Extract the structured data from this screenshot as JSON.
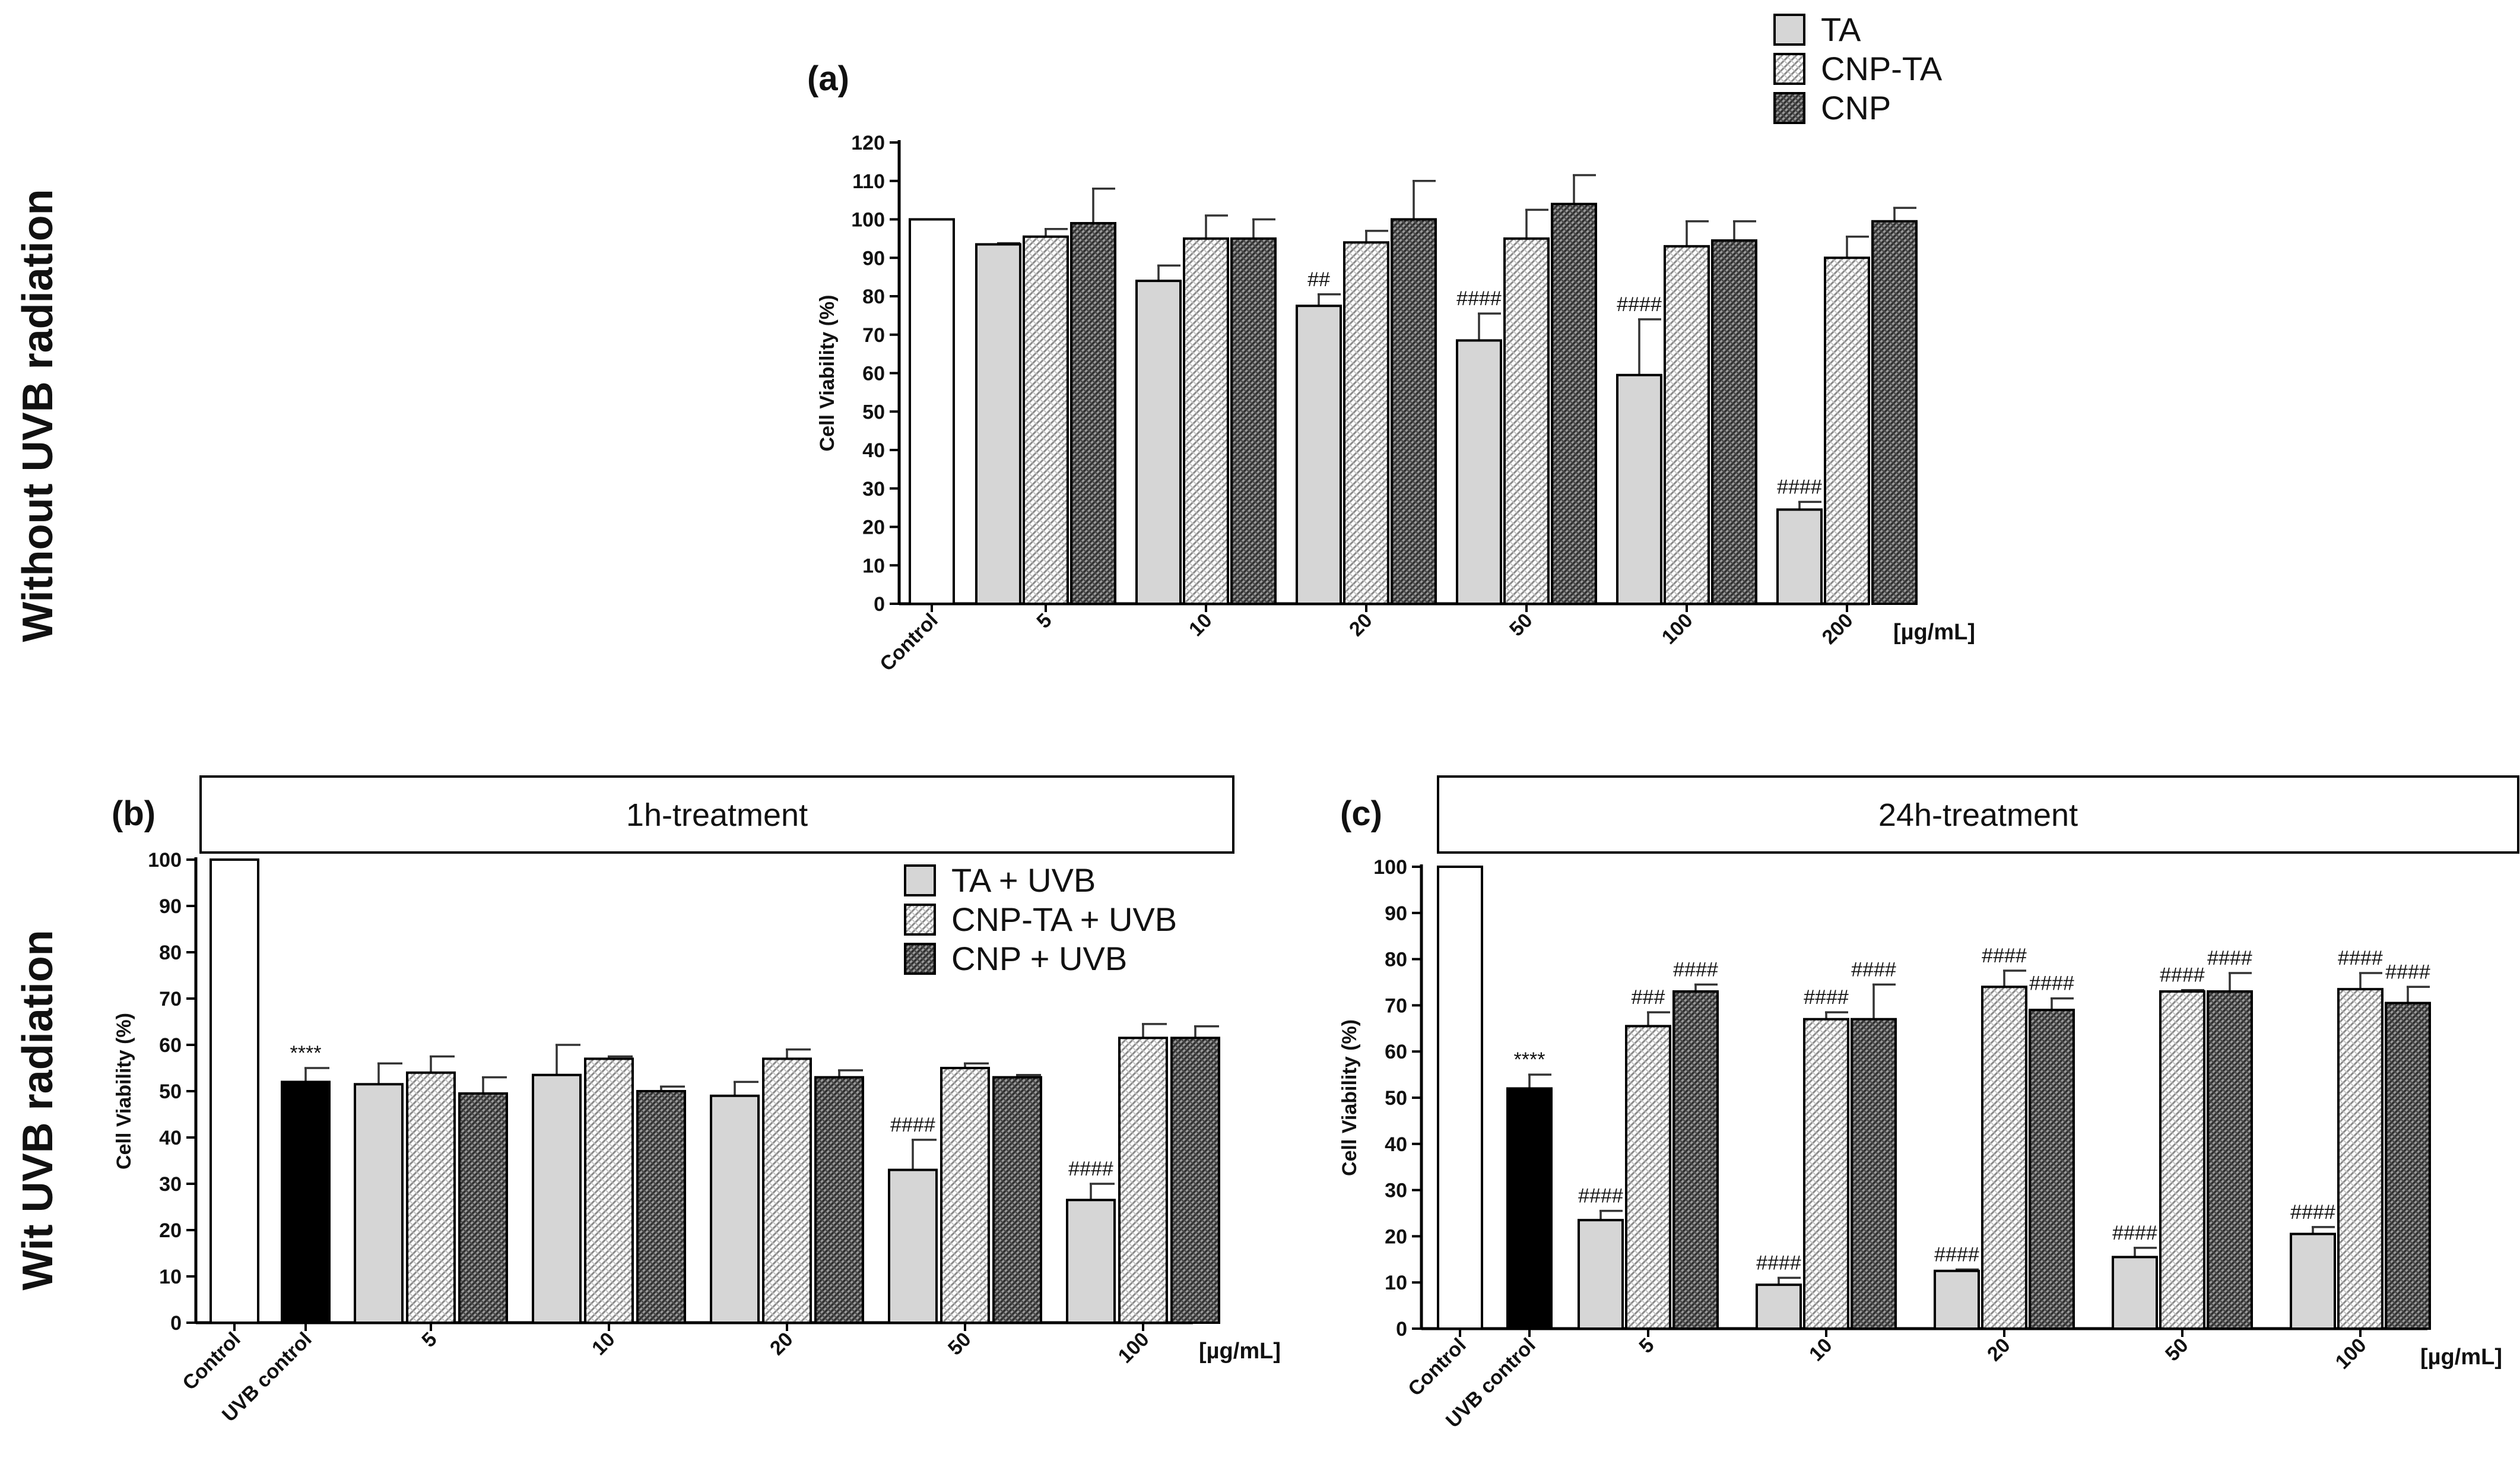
{
  "rotated_labels": {
    "top": "Without  UVB radiation",
    "bottom": "Wit UVB radiation"
  },
  "styles": {
    "TA": {
      "fill": "#d6d6d6",
      "pattern": "solid"
    },
    "CNP-TA": {
      "fill": "#ffffff",
      "pattern": "light-hatch"
    },
    "CNP": {
      "fill": "#595959",
      "pattern": "dark-hatch"
    },
    "control": {
      "fill": "#ffffff"
    },
    "uvb_control": {
      "fill": "#000000"
    }
  },
  "chart_data": [
    {
      "id": "a",
      "type": "bar",
      "panel_label": "(a)",
      "header": "",
      "ylabel": "Cell Viability (%)",
      "unit": "[µg/mL]",
      "ylim": [
        0,
        120
      ],
      "yticks": [
        0,
        10,
        20,
        30,
        40,
        50,
        60,
        70,
        80,
        90,
        100,
        110,
        120
      ],
      "legend": {
        "position": "top-right",
        "entries": [
          "TA",
          "CNP-TA",
          "CNP"
        ]
      },
      "controls": [
        {
          "label": "Control",
          "value": 100,
          "err": 0,
          "style": "control",
          "annotation": ""
        }
      ],
      "categories": [
        "5",
        "10",
        "20",
        "50",
        "100",
        "200"
      ],
      "series": [
        {
          "name": "TA",
          "style": "TA",
          "values": [
            93.5,
            84,
            77.5,
            68.5,
            59.5,
            24.5
          ],
          "errors": [
            0.3,
            4,
            3,
            7,
            14.5,
            2
          ],
          "annotations": [
            "",
            "",
            "##",
            "####",
            "####",
            "####"
          ]
        },
        {
          "name": "CNP-TA",
          "style": "CNP-TA",
          "values": [
            95.5,
            95,
            94,
            95,
            93,
            90
          ],
          "errors": [
            2,
            6,
            3,
            7.5,
            6.5,
            5.5
          ],
          "annotations": [
            "",
            "",
            "",
            "",
            "",
            ""
          ]
        },
        {
          "name": "CNP",
          "style": "CNP",
          "values": [
            99,
            95,
            100,
            104,
            94.5,
            99.5
          ],
          "errors": [
            9,
            5,
            10,
            7.5,
            5,
            3.5
          ],
          "annotations": [
            "",
            "",
            "",
            "",
            "",
            ""
          ]
        }
      ]
    },
    {
      "id": "b",
      "type": "bar",
      "panel_label": "(b)",
      "header": "1h-treatment",
      "ylabel": "Cell Viability (%)",
      "unit": "[µg/mL]",
      "ylim": [
        0,
        100
      ],
      "yticks": [
        0,
        10,
        20,
        30,
        40,
        50,
        60,
        70,
        80,
        90,
        100
      ],
      "legend": {
        "position": "top-right",
        "entries": [
          "TA + UVB",
          "CNP-TA + UVB",
          "CNP + UVB"
        ]
      },
      "controls": [
        {
          "label": "Control",
          "value": 100,
          "err": 0,
          "style": "control",
          "annotation": ""
        },
        {
          "label": "UVB control",
          "value": 52,
          "err": 3,
          "style": "uvb_control",
          "annotation": "****"
        }
      ],
      "categories": [
        "5",
        "10",
        "20",
        "50",
        "100"
      ],
      "series": [
        {
          "name": "TA + UVB",
          "style": "TA",
          "values": [
            51.5,
            53.5,
            49,
            33,
            26.5
          ],
          "errors": [
            4.5,
            6.5,
            3,
            6.5,
            3.5
          ],
          "annotations": [
            "",
            "",
            "",
            "####",
            "####"
          ]
        },
        {
          "name": "CNP-TA + UVB",
          "style": "CNP-TA",
          "values": [
            54,
            57,
            57,
            55,
            61.5
          ],
          "errors": [
            3.5,
            0.5,
            2,
            1,
            3
          ],
          "annotations": [
            "",
            "",
            "",
            "",
            ""
          ]
        },
        {
          "name": "CNP + UVB",
          "style": "CNP",
          "values": [
            49.5,
            50,
            53,
            53,
            61.5
          ],
          "errors": [
            3.5,
            1,
            1.5,
            0.5,
            2.5
          ],
          "annotations": [
            "",
            "",
            "",
            "",
            ""
          ]
        }
      ]
    },
    {
      "id": "c",
      "type": "bar",
      "panel_label": "(c)",
      "header": "24h-treatment",
      "ylabel": "Cell Viability (%)",
      "unit": "[µg/mL]",
      "ylim": [
        0,
        100
      ],
      "yticks": [
        0,
        10,
        20,
        30,
        40,
        50,
        60,
        70,
        80,
        90,
        100
      ],
      "legend": null,
      "controls": [
        {
          "label": "Control",
          "value": 100,
          "err": 0,
          "style": "control",
          "annotation": ""
        },
        {
          "label": "UVB control",
          "value": 52,
          "err": 3,
          "style": "uvb_control",
          "annotation": "****"
        }
      ],
      "categories": [
        "5",
        "10",
        "20",
        "50",
        "100"
      ],
      "series": [
        {
          "name": "TA + UVB",
          "style": "TA",
          "values": [
            23.5,
            9.5,
            12.5,
            15.5,
            20.5
          ],
          "errors": [
            2,
            1.5,
            0.3,
            2,
            1.5
          ],
          "annotations": [
            "####",
            "####",
            "####",
            "####",
            "####"
          ]
        },
        {
          "name": "CNP-TA + UVB",
          "style": "CNP-TA",
          "values": [
            65.5,
            67,
            74,
            73,
            73.5
          ],
          "errors": [
            3,
            1.5,
            3.5,
            0.3,
            3.5
          ],
          "annotations": [
            "###",
            "####",
            "####",
            "####",
            "####"
          ]
        },
        {
          "name": "CNP + UVB",
          "style": "CNP",
          "values": [
            73,
            67,
            69,
            73,
            70.5
          ],
          "errors": [
            1.5,
            7.5,
            2.5,
            4,
            3.5
          ],
          "annotations": [
            "####",
            "####",
            "####",
            "####",
            "####"
          ]
        }
      ]
    }
  ]
}
